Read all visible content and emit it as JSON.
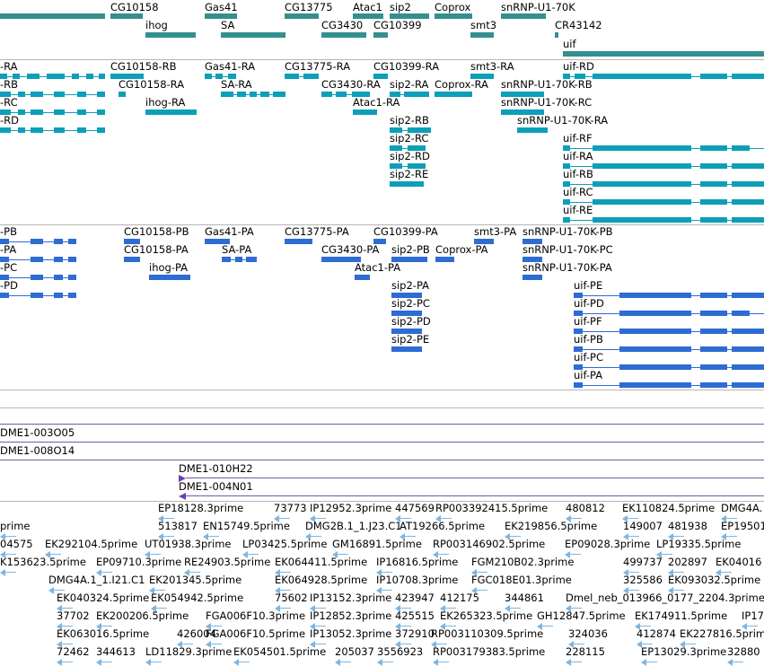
{
  "colors": {
    "gene": "#33908e",
    "transcript_rna": "#0e9fb8",
    "transcript_protein": "#2e6cd4",
    "track_separator": "#b6b6b6",
    "clone_line": "#7a5aa0",
    "clone_arrow": "#6a3fb5",
    "est": "#7fb6e0"
  },
  "gene_track": {
    "labels": [
      "CG10158",
      "Gas41",
      "CG13775",
      "Atac1",
      "sip2",
      "Coprox",
      "snRNP-U1-70K",
      "ihog",
      "SA",
      "CG3430",
      "CG10399",
      "smt3",
      "CR43142",
      "uif"
    ]
  },
  "rna_track": {
    "labels": [
      "-RA",
      "-RB",
      "-RC",
      "-RD",
      "CG10158-RB",
      "CG10158-RA",
      "ihog-RA",
      "Gas41-RA",
      "SA-RA",
      "CG13775-RA",
      "CG3430-RA",
      "Atac1-RA",
      "CG10399-RA",
      "sip2-RA",
      "Coprox-RA",
      "sip2-RB",
      "sip2-RC",
      "sip2-RD",
      "sip2-RE",
      "smt3-RA",
      "snRNP-U1-70K-RB",
      "snRNP-U1-70K-RC",
      "snRNP-U1-70K-RA",
      "uif-RD",
      "uif-RF",
      "uif-RA",
      "uif-RB",
      "uif-RC",
      "uif-RE"
    ]
  },
  "protein_track": {
    "labels": [
      "-PB",
      "-PA",
      "-PC",
      "-PD",
      "CG10158-PB",
      "CG10158-PA",
      "ihog-PA",
      "Gas41-PA",
      "SA-PA",
      "CG13775-PA",
      "CG3430-PA",
      "Atac1-PA",
      "CG10399-PA",
      "sip2-PB",
      "Coprox-PA",
      "sip2-PA",
      "sip2-PC",
      "sip2-PD",
      "sip2-PE",
      "smt3-PA",
      "snRNP-U1-70K-PB",
      "snRNP-U1-70K-PC",
      "snRNP-U1-70K-PA",
      "uif-PE",
      "uif-PD",
      "uif-PF",
      "uif-PB",
      "uif-PC",
      "uif-PA"
    ]
  },
  "clone_track": {
    "labels": [
      "DME1-003O05",
      "DME1-008O14",
      "DME1-010H22",
      "DME1-004N01"
    ]
  },
  "est_track": {
    "labels": [
      "EP18128.3prime",
      "73773",
      "IP12952.3prime",
      "447569",
      "RP003392415.5prime",
      "480812",
      "EK110824.5prime",
      "DMG4A.",
      "prime",
      "513817",
      "EN15749.5prime",
      "DMG2B.1_1.J23.C1",
      "AT19266.5prime",
      "EK219856.5prime",
      "149007",
      "481938",
      "EP19501.",
      "04575",
      "EK292104.5prime",
      "UT01938.3prime",
      "LP03425.5prime",
      "GM16891.5prime",
      "RP003146902.5prime",
      "EP09028.3prime",
      "LP19335.5prime",
      "K153623.5prime",
      "EP09710.3prime",
      "RE24903.5prime",
      "EK064411.5prime",
      "IP16816.5prime",
      "FGM210B02.3prime",
      "499737",
      "202897",
      "EK04016",
      "DMG4A.1_1.I21.C1",
      "EK201345.5prime",
      "EK064928.5prime",
      "IP10708.3prime",
      "FGC018E01.3prime",
      "325586",
      "EK093032.5prime",
      "EK040324.5prime",
      "EK054942.5prime",
      "75602",
      "IP13152.3prime",
      "423947",
      "412175",
      "344861",
      "Dmel_neb_013966_0177_2204.3prime",
      "37702",
      "EK200206.5prime",
      "FGA006F10.3prime",
      "IP12852.3prime",
      "425515",
      "EK265323.5prime",
      "GH12847.5prime",
      "EK174911.5prime",
      "IP17",
      "EK063016.5prime",
      "426004",
      "FGA006F10.5prime",
      "IP13052.3prime",
      "372910",
      "RP003110309.5prime",
      "324036",
      "412874",
      "EK227816.5prime",
      "72462",
      "344613",
      "LD11829.3prime",
      "EK054501.5prime",
      "205037",
      "3556923",
      "RP003179383.5prime",
      "228115",
      "EP13029.3prime",
      "32880"
    ]
  }
}
